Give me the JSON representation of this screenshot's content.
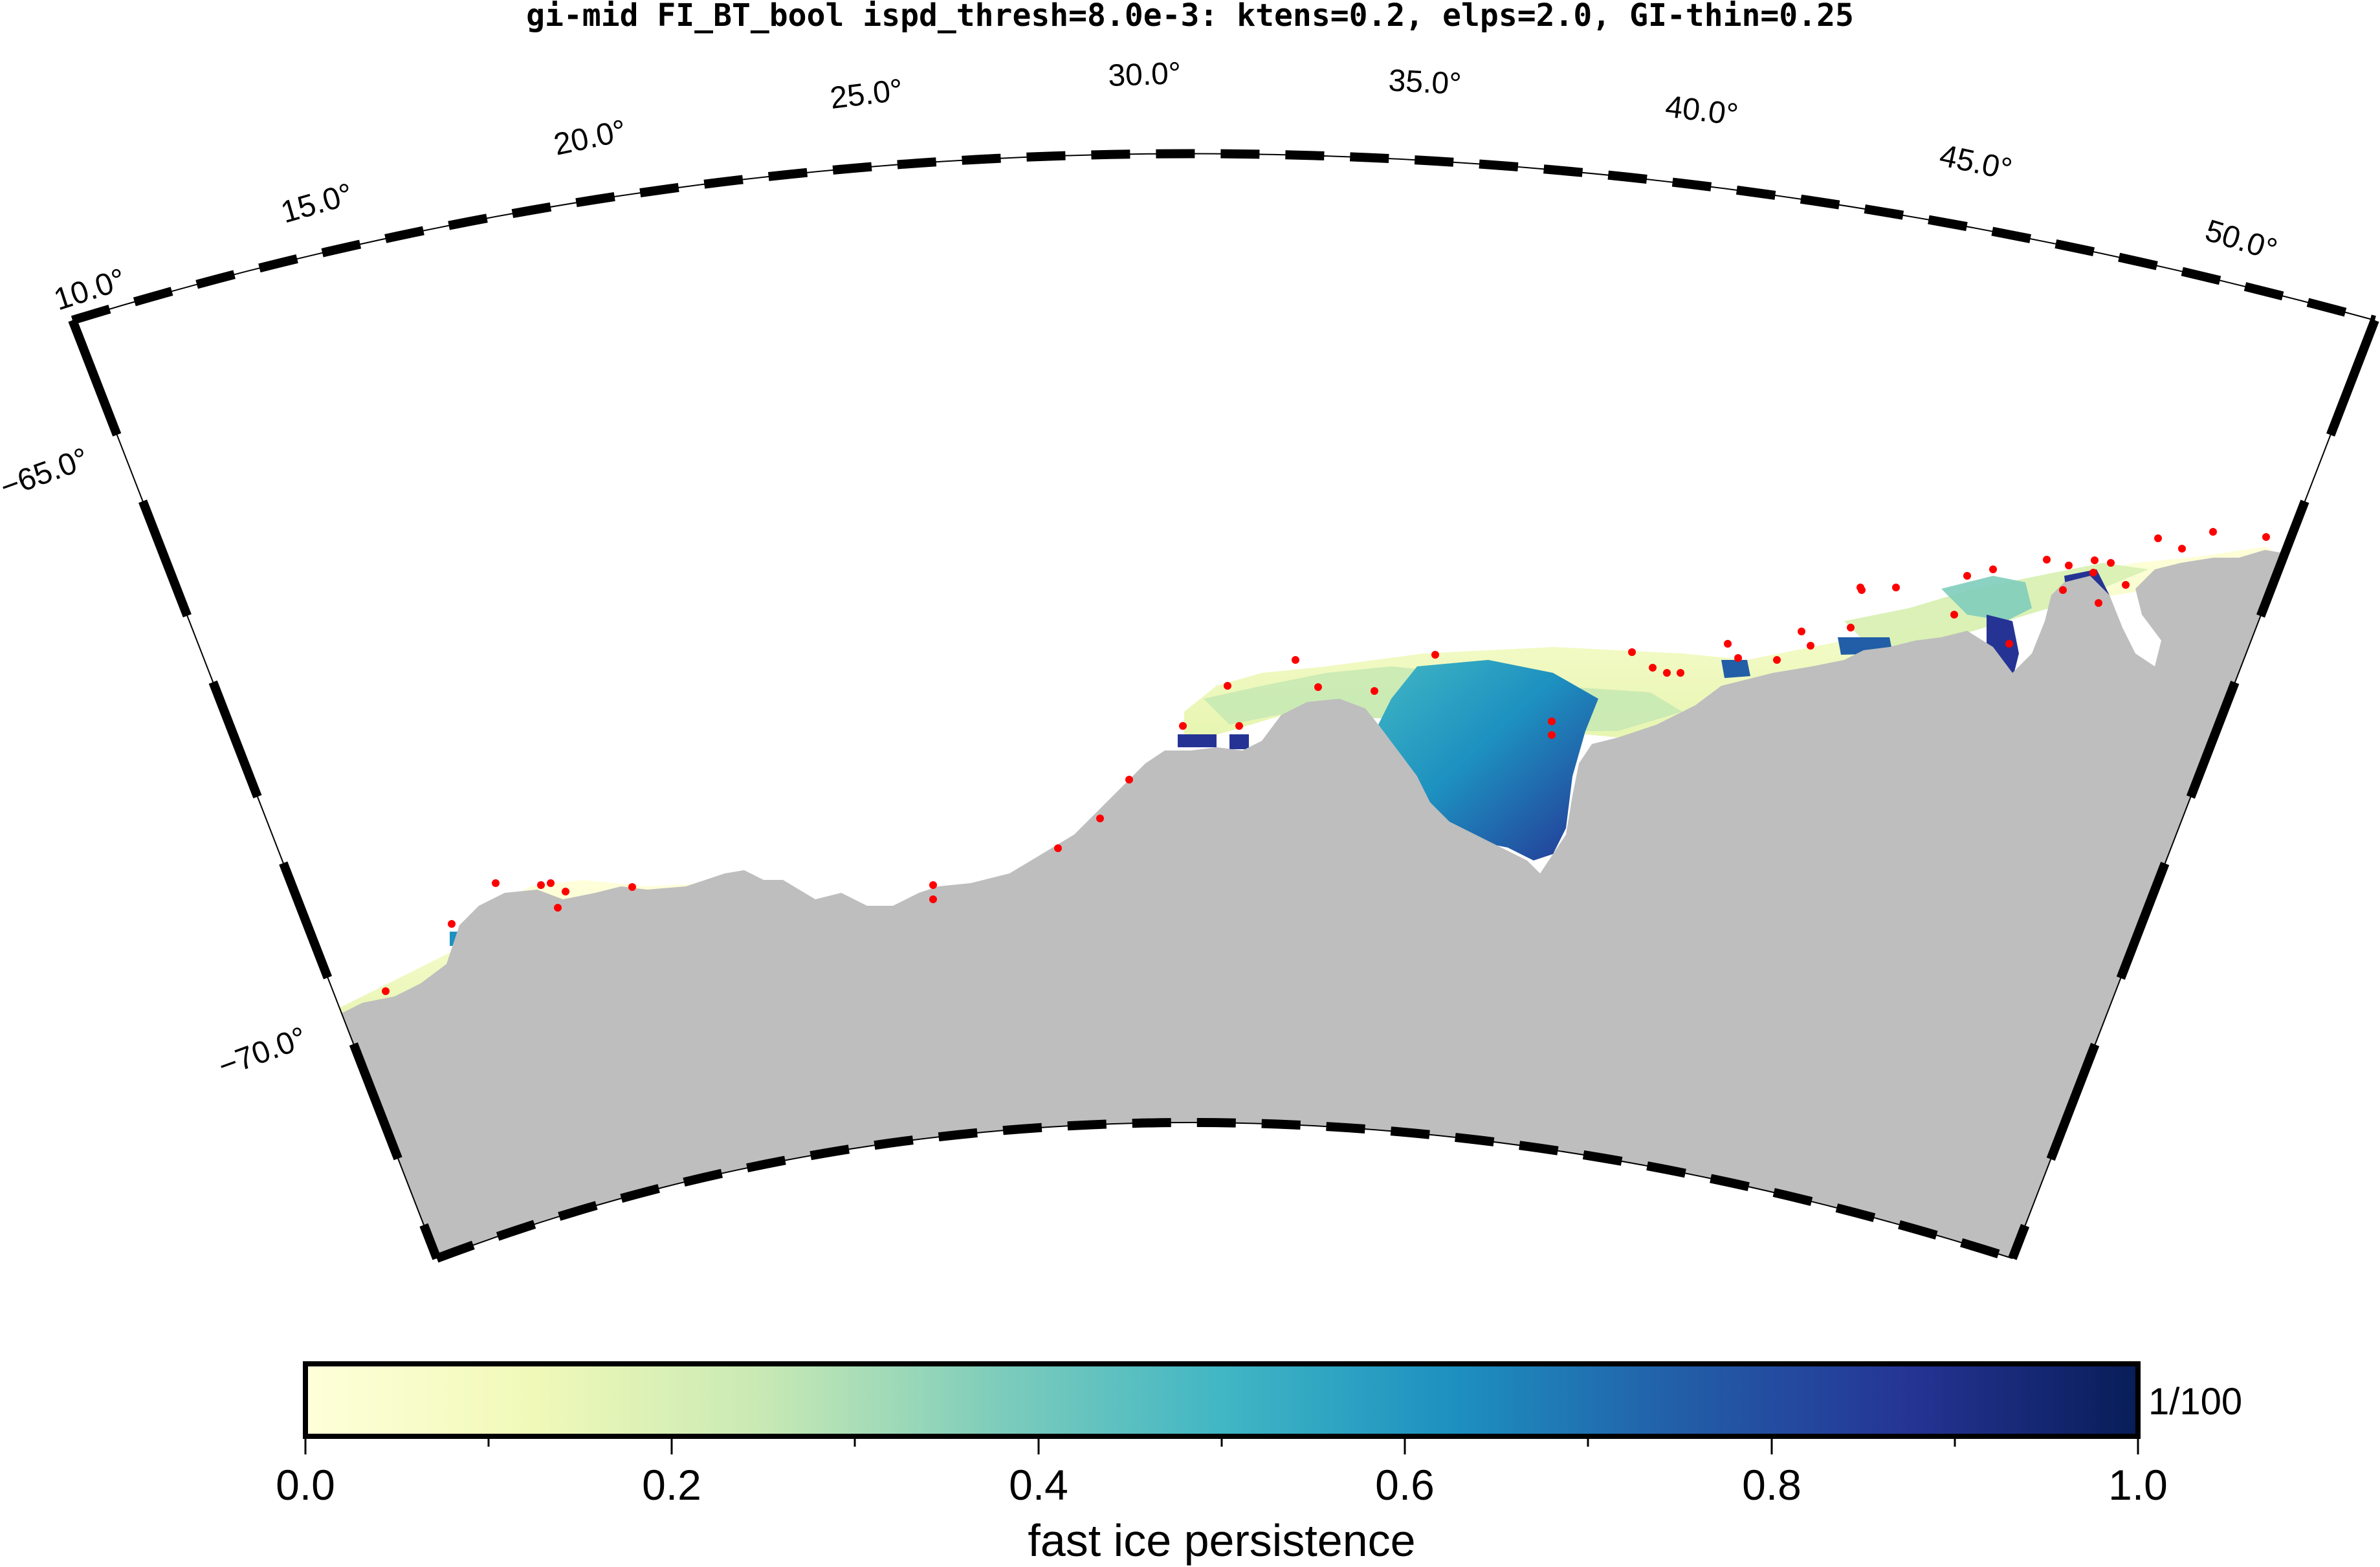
{
  "title": "gi-mid FI_BT_bool ispd_thresh=8.0e-3: ktens=0.2, elps=2.0, GI-thin=0.25",
  "map": {
    "region": "Antarctic coastline sector",
    "longitude_labels": [
      "10.0°",
      "15.0°",
      "20.0°",
      "25.0°",
      "30.0°",
      "35.0°",
      "40.0°",
      "45.0°",
      "50.0°"
    ],
    "latitude_labels": [
      "−65.0°",
      "−70.0°"
    ],
    "land_color": "#bebebe",
    "ocean_color": "#ffffff",
    "grounded_iceberg_marker_color": "#ff0000"
  },
  "colorbar": {
    "label": "fast ice persistence",
    "unit_annotation": "1/100",
    "tick_labels": [
      "0.0",
      "0.2",
      "0.4",
      "0.6",
      "0.8",
      "1.0"
    ],
    "range": [
      0.0,
      1.0
    ],
    "colormap": [
      "#ffffd9",
      "#f0f9b8",
      "#c8e9b4",
      "#7fcdbb",
      "#41b6c4",
      "#1d91c0",
      "#225ea8",
      "#253494",
      "#081d58"
    ]
  }
}
